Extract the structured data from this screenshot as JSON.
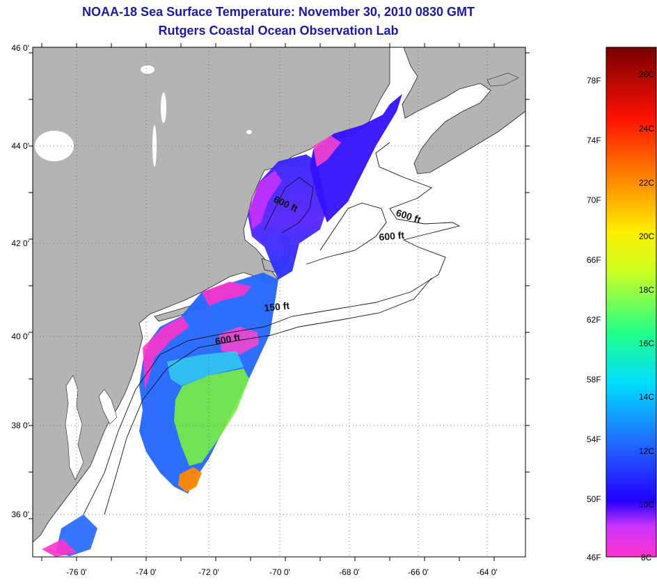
{
  "title": "NOAA-18 Sea Surface Temperature:  November 30, 2010 0830 GMT",
  "subtitle": "Rutgers Coastal Ocean Observation Lab",
  "lat_ticks": [
    "46 0'",
    "44 0'",
    "42 0'",
    "40 0'",
    "38 0'",
    "36 0'"
  ],
  "lon_ticks": [
    "-76 0'",
    "-74 0'",
    "-72 0'",
    "-70 0'",
    "-68 0'",
    "-66 0'",
    "-64 0'"
  ],
  "lon_range": [
    -77,
    -63
  ],
  "lat_range": [
    35,
    46
  ],
  "grid": "dotted",
  "contours": [
    {
      "label": "600 ft"
    },
    {
      "label": "600 ft"
    },
    {
      "label": "600 ft"
    },
    {
      "label": "150 ft"
    },
    {
      "label": "600 ft"
    }
  ],
  "colorbar": {
    "fahrenheit": [
      "78F",
      "74F",
      "70F",
      "66F",
      "62F",
      "58F",
      "54F",
      "50F",
      "46F"
    ],
    "celsius": [
      "26C",
      "24C",
      "22C",
      "20C",
      "18C",
      "16C",
      "14C",
      "12C",
      "10C",
      "8C"
    ],
    "range_c": [
      8,
      27
    ],
    "colors": [
      "#ff33cc",
      "#9933ff",
      "#2222ff",
      "#2288ff",
      "#00ffff",
      "#66ff66",
      "#ffff00",
      "#ff9900",
      "#ff0000",
      "#800000"
    ]
  },
  "colors": {
    "land": "#b4b4b4",
    "ocean": "#ffffff",
    "title": "#1a1aa6"
  }
}
